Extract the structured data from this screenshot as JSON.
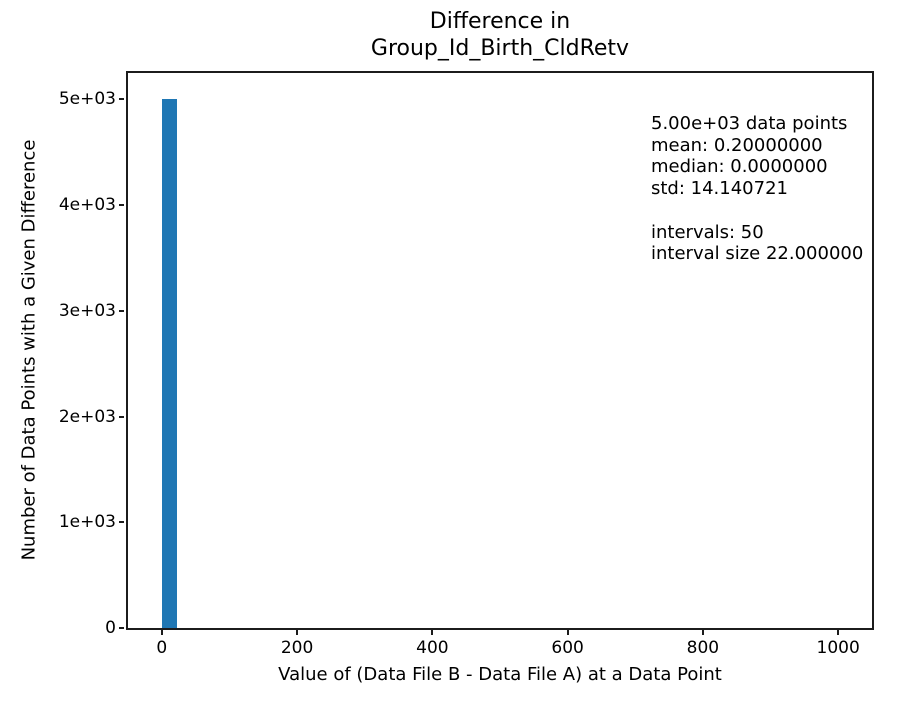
{
  "chart_data": {
    "type": "bar",
    "title": "Difference in\nGroup_Id_Birth_CldRetv",
    "xlabel": "Value of (Data File B - Data File A) at a Data Point",
    "ylabel": "Number of Data Points with a Given Difference",
    "xlim": [
      -50,
      1050
    ],
    "ylim": [
      0,
      5250
    ],
    "grid": false,
    "legend": "none",
    "bar_color": "#1f77b4",
    "spine_color": "#1c1c1c",
    "bars": [
      {
        "x0": 0,
        "x1": 22,
        "count": 5000
      }
    ],
    "xticks": [
      {
        "value": 0,
        "label": "0"
      },
      {
        "value": 200,
        "label": "200"
      },
      {
        "value": 400,
        "label": "400"
      },
      {
        "value": 600,
        "label": "600"
      },
      {
        "value": 800,
        "label": "800"
      },
      {
        "value": 1000,
        "label": "1000"
      }
    ],
    "yticks": [
      {
        "value": 0,
        "label": "0"
      },
      {
        "value": 1000,
        "label": "1e+03"
      },
      {
        "value": 2000,
        "label": "2e+03"
      },
      {
        "value": 3000,
        "label": "3e+03"
      },
      {
        "value": 4000,
        "label": "4e+03"
      },
      {
        "value": 5000,
        "label": "5e+03"
      }
    ],
    "annotation": "5.00e+03 data points\nmean: 0.20000000\nmedian: 0.0000000\nstd: 14.140721\n\nintervals: 50\ninterval size 22.000000",
    "stats": {
      "data_points": "5.00e+03",
      "mean": "0.20000000",
      "median": "0.0000000",
      "std": "14.140721",
      "intervals": "50",
      "interval_size": "22.000000"
    }
  }
}
